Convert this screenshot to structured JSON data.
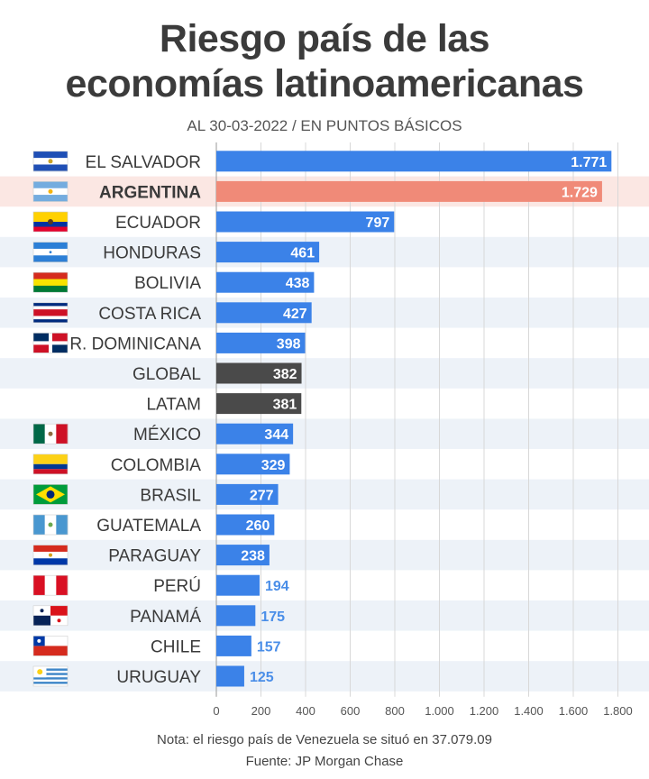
{
  "title_line1": "Riesgo país de las",
  "title_line2": "economías latinoamericanas",
  "subtitle": "AL 30-03-2022  /  EN PUNTOS BÁSICOS",
  "note": "Nota: el riesgo país de Venezuela se situó en 37.079.09",
  "source": "Fuente: JP Morgan Chase",
  "colors": {
    "bar_default": "#3b82e8",
    "bar_highlight": "#f08a78",
    "bar_aggregate": "#4a4a4a",
    "row_alt": "#edf2f8",
    "row_highlight": "#fbe7e3",
    "value_outside": "#4a8ee8"
  },
  "chart_data": {
    "type": "bar",
    "orientation": "horizontal",
    "xlim": [
      0,
      1800
    ],
    "ticks": [
      "0",
      "200",
      "400",
      "600",
      "800",
      "1.000",
      "1.200",
      "1.400",
      "1.600",
      "1.800"
    ],
    "grid": true,
    "rows": [
      {
        "label": "EL SALVADOR",
        "value": 1771,
        "value_label": "1.771",
        "kind": "default",
        "flag": "el-salvador-flag"
      },
      {
        "label": "ARGENTINA",
        "value": 1729,
        "value_label": "1.729",
        "kind": "highlight",
        "flag": "argentina-flag"
      },
      {
        "label": "ECUADOR",
        "value": 797,
        "value_label": "797",
        "kind": "default",
        "flag": "ecuador-flag"
      },
      {
        "label": "HONDURAS",
        "value": 461,
        "value_label": "461",
        "kind": "default",
        "flag": "honduras-flag"
      },
      {
        "label": "BOLIVIA",
        "value": 438,
        "value_label": "438",
        "kind": "default",
        "flag": "bolivia-flag"
      },
      {
        "label": "COSTA RICA",
        "value": 427,
        "value_label": "427",
        "kind": "default",
        "flag": "costa-rica-flag"
      },
      {
        "label": "R. DOMINICANA",
        "value": 398,
        "value_label": "398",
        "kind": "default",
        "flag": "dominican-republic-flag"
      },
      {
        "label": "GLOBAL",
        "value": 382,
        "value_label": "382",
        "kind": "aggregate",
        "flag": ""
      },
      {
        "label": "LATAM",
        "value": 381,
        "value_label": "381",
        "kind": "aggregate",
        "flag": ""
      },
      {
        "label": "MÉXICO",
        "value": 344,
        "value_label": "344",
        "kind": "default",
        "flag": "mexico-flag"
      },
      {
        "label": "COLOMBIA",
        "value": 329,
        "value_label": "329",
        "kind": "default",
        "flag": "colombia-flag"
      },
      {
        "label": "BRASIL",
        "value": 277,
        "value_label": "277",
        "kind": "default",
        "flag": "brazil-flag"
      },
      {
        "label": "GUATEMALA",
        "value": 260,
        "value_label": "260",
        "kind": "default",
        "flag": "guatemala-flag"
      },
      {
        "label": "PARAGUAY",
        "value": 238,
        "value_label": "238",
        "kind": "default",
        "flag": "paraguay-flag"
      },
      {
        "label": "PERÚ",
        "value": 194,
        "value_label": "194",
        "kind": "default",
        "flag": "peru-flag"
      },
      {
        "label": "PANAMÁ",
        "value": 175,
        "value_label": "175",
        "kind": "default",
        "flag": "panama-flag"
      },
      {
        "label": "CHILE",
        "value": 157,
        "value_label": "157",
        "kind": "default",
        "flag": "chile-flag"
      },
      {
        "label": "URUGUAY",
        "value": 125,
        "value_label": "125",
        "kind": "default",
        "flag": "uruguay-flag"
      }
    ]
  }
}
